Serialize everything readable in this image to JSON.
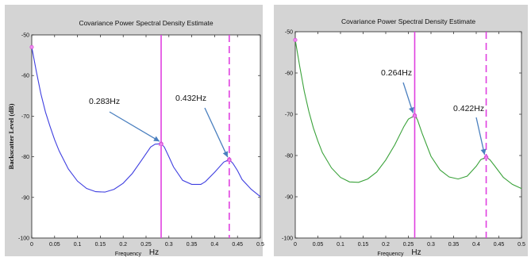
{
  "chart_data": [
    {
      "type": "line",
      "title": "Covariance Power Spectral Density Estimate",
      "xlabel": "Frequency",
      "xunit": "Hz",
      "ylabel": "Backscatter Level (dB)",
      "xlim": [
        0,
        0.5
      ],
      "ylim": [
        -100,
        -50
      ],
      "xticks": [
        "0",
        "0.05",
        "0.1",
        "0.15",
        "0.2",
        "0.25",
        "0.3",
        "0.35",
        "0.4",
        "0.45",
        "0.5"
      ],
      "yticks": [
        "-50",
        "-60",
        "-70",
        "-80",
        "-90",
        "-100"
      ],
      "grid": false,
      "series": [
        {
          "color": "#3f3fe0",
          "x": [
            0,
            0.01,
            0.02,
            0.03,
            0.04,
            0.05,
            0.06,
            0.08,
            0.1,
            0.12,
            0.14,
            0.16,
            0.18,
            0.2,
            0.22,
            0.24,
            0.26,
            0.27,
            0.283,
            0.29,
            0.3,
            0.31,
            0.33,
            0.35,
            0.37,
            0.38,
            0.4,
            0.42,
            0.432,
            0.44,
            0.45,
            0.46,
            0.48,
            0.5
          ],
          "y": [
            -53,
            -59,
            -64.5,
            -69,
            -72.5,
            -75.8,
            -78.6,
            -83,
            -86,
            -87.8,
            -88.6,
            -88.7,
            -88,
            -86.5,
            -84.1,
            -80.9,
            -77.6,
            -76.9,
            -76.8,
            -77.6,
            -80,
            -82.5,
            -85.8,
            -86.8,
            -86.8,
            -86.1,
            -83.8,
            -81.3,
            -80.7,
            -81.6,
            -83.4,
            -85.6,
            -88,
            -89.8
          ]
        }
      ],
      "markers": [
        {
          "x": 0.283,
          "style": "solid",
          "color": "#e040e0"
        },
        {
          "x": 0.432,
          "style": "dashed",
          "color": "#e040e0"
        }
      ],
      "annotations": [
        {
          "text": "0.283Hz",
          "x": 0.283,
          "y": -76.8
        },
        {
          "text": "0.432Hz",
          "x": 0.432,
          "y": -80.7
        }
      ]
    },
    {
      "type": "line",
      "title": "Covariance Power Spectral Density Estimate",
      "xlabel": "Frequency",
      "xunit": "Hz",
      "ylabel": "",
      "xlim": [
        0,
        0.5
      ],
      "ylim": [
        -100,
        -50
      ],
      "xticks": [
        "0",
        "0.05",
        "0.1",
        "0.15",
        "0.2",
        "0.25",
        "0.3",
        "0.35",
        "0.4",
        "0.45",
        "0.5"
      ],
      "yticks": [
        "-50",
        "-60",
        "-70",
        "-80",
        "-90",
        "-100"
      ],
      "grid": false,
      "series": [
        {
          "color": "#3aa23a",
          "x": [
            0,
            0.01,
            0.02,
            0.03,
            0.04,
            0.05,
            0.06,
            0.08,
            0.1,
            0.12,
            0.14,
            0.16,
            0.18,
            0.2,
            0.22,
            0.24,
            0.25,
            0.264,
            0.27,
            0.28,
            0.3,
            0.32,
            0.34,
            0.36,
            0.38,
            0.4,
            0.41,
            0.422,
            0.43,
            0.44,
            0.46,
            0.48,
            0.5
          ],
          "y": [
            -52,
            -58.5,
            -64.5,
            -69.3,
            -73.3,
            -76.5,
            -79.3,
            -83,
            -85.3,
            -86.4,
            -86.5,
            -85.7,
            -84,
            -81.1,
            -77.4,
            -73,
            -71.2,
            -70.3,
            -71.3,
            -74.5,
            -80.2,
            -83.5,
            -85.2,
            -85.7,
            -85,
            -82.6,
            -81,
            -80.4,
            -81,
            -82.4,
            -85.3,
            -87,
            -88
          ]
        }
      ],
      "markers": [
        {
          "x": 0.264,
          "style": "solid",
          "color": "#e040e0"
        },
        {
          "x": 0.422,
          "style": "dashed",
          "color": "#e040e0"
        }
      ],
      "annotations": [
        {
          "text": "0.264Hz",
          "x": 0.264,
          "y": -70.3
        },
        {
          "text": "0.422Hz",
          "x": 0.422,
          "y": -80.4
        }
      ]
    }
  ]
}
